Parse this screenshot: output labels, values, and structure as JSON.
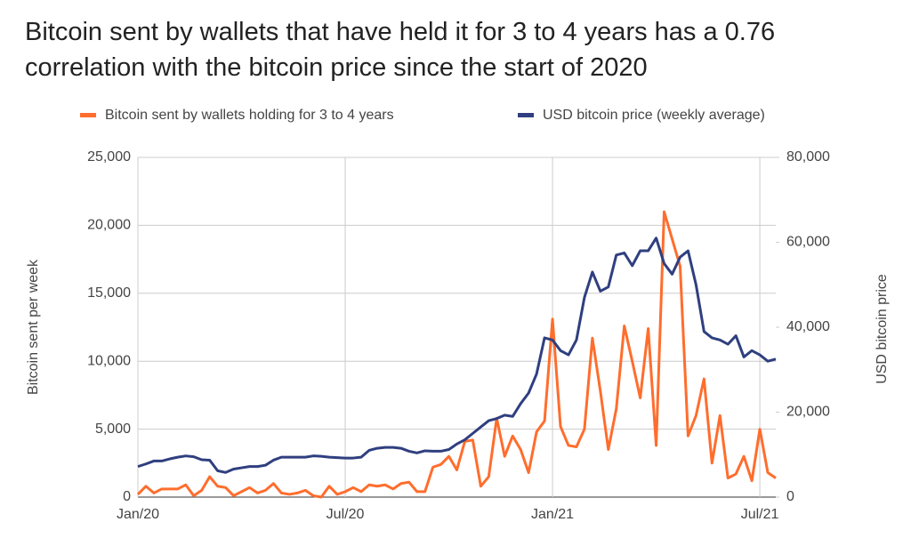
{
  "chart_data": {
    "type": "line",
    "title": "Bitcoin sent by wallets that have held it for 3 to 4 years has a 0.76 correlation with the bitcoin price since the start of 2020",
    "ylabel": "Bitcoin sent per week",
    "y2label": "USD bitcoin price",
    "categories": [
      "Jan/20",
      null,
      null,
      null,
      null,
      null,
      null,
      null,
      null,
      null,
      null,
      null,
      null,
      null,
      null,
      null,
      null,
      null,
      null,
      null,
      null,
      null,
      null,
      null,
      null,
      null,
      "Jul/20",
      null,
      null,
      null,
      null,
      null,
      null,
      null,
      null,
      null,
      null,
      null,
      null,
      null,
      null,
      null,
      null,
      null,
      null,
      null,
      null,
      null,
      null,
      null,
      null,
      null,
      "Jan/21",
      null,
      null,
      null,
      null,
      null,
      null,
      null,
      null,
      null,
      null,
      null,
      null,
      null,
      null,
      null,
      null,
      null,
      null,
      null,
      null,
      null,
      null,
      null,
      null,
      null,
      "Jul/21",
      null,
      null
    ],
    "series": [
      {
        "name": "Bitcoin sent by wallets holding for 3 to 4 years",
        "color": "#ff6d2d",
        "axis": "y",
        "values": [
          200,
          800,
          300,
          600,
          600,
          600,
          900,
          100,
          500,
          1500,
          800,
          700,
          100,
          400,
          700,
          300,
          500,
          1000,
          300,
          200,
          300,
          500,
          100,
          0,
          800,
          200,
          400,
          700,
          400,
          900,
          800,
          900,
          600,
          1000,
          1100,
          400,
          400,
          2200,
          2400,
          3000,
          2000,
          4100,
          4200,
          800,
          1500,
          5800,
          3000,
          4500,
          3500,
          1800,
          4800,
          5600,
          13100,
          5200,
          3800,
          3700,
          5000,
          11700,
          7800,
          3500,
          6500,
          12600,
          10000,
          7300,
          12400,
          3800,
          21000,
          19000,
          17000,
          4500,
          6000,
          8700,
          2500,
          6000,
          1400,
          1700,
          3000,
          1200,
          5000,
          1800,
          1400
        ]
      },
      {
        "name": "USD bitcoin price (weekly average)",
        "color": "#2f3f7f",
        "axis": "y2",
        "values": [
          7200,
          7800,
          8500,
          8500,
          9000,
          9400,
          9700,
          9500,
          8800,
          8700,
          6200,
          5800,
          6600,
          6900,
          7200,
          7200,
          7500,
          8700,
          9400,
          9400,
          9400,
          9400,
          9700,
          9600,
          9400,
          9300,
          9200,
          9200,
          9400,
          11000,
          11500,
          11700,
          11700,
          11500,
          10800,
          10400,
          10900,
          10800,
          10800,
          11200,
          12500,
          13500,
          15000,
          16500,
          18000,
          18500,
          19300,
          19000,
          22000,
          24500,
          29000,
          37500,
          37000,
          34500,
          33500,
          37000,
          47000,
          53000,
          48500,
          49500,
          57000,
          57500,
          54500,
          58000,
          58000,
          61000,
          55000,
          52500,
          56500,
          58000,
          50000,
          39000,
          37500,
          37000,
          36000,
          38000,
          33000,
          34500,
          33500,
          32000,
          32500
        ]
      }
    ],
    "ylim": [
      0,
      25000
    ],
    "yticks": [
      0,
      {
        "value": 5000,
        "label": "5,000"
      },
      {
        "value": 10000,
        "label": "10,000"
      },
      {
        "value": 15000,
        "label": "15,000"
      },
      {
        "value": 20000,
        "label": "20,000"
      },
      {
        "value": 25000,
        "label": "25,000"
      }
    ],
    "y2lim": [
      0,
      80000
    ],
    "y2ticks": [
      0,
      {
        "value": 20000,
        "label": "20,000"
      },
      {
        "value": 40000,
        "label": "40,000"
      },
      {
        "value": 60000,
        "label": "60,000"
      },
      {
        "value": 80000,
        "label": "80,000"
      }
    ],
    "grid": true,
    "legend": "top"
  }
}
